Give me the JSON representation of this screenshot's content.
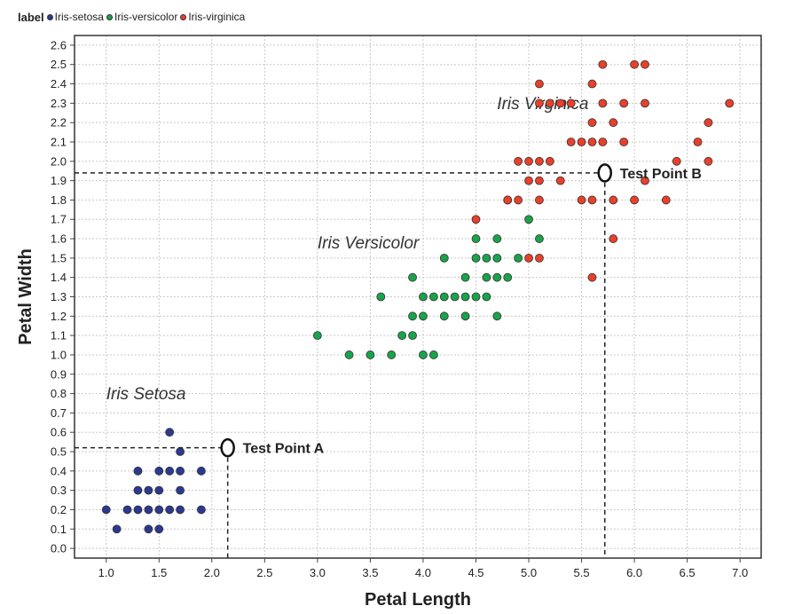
{
  "legend": {
    "title": "label",
    "items": [
      {
        "label": "Iris-setosa",
        "color": "#2b3990"
      },
      {
        "label": "Iris-versicolor",
        "color": "#1aa34a"
      },
      {
        "label": "Iris-virginica",
        "color": "#e8402a"
      }
    ]
  },
  "chart_data": {
    "type": "scatter",
    "title": "",
    "xlabel": "Petal Length",
    "ylabel": "Petal Width",
    "xlim": [
      0.7,
      7.2
    ],
    "ylim": [
      -0.05,
      2.65
    ],
    "xticks": [
      1.0,
      1.5,
      2.0,
      2.5,
      3.0,
      3.5,
      4.0,
      4.5,
      5.0,
      5.5,
      6.0,
      6.5,
      7.0
    ],
    "yticks": [
      0.0,
      0.1,
      0.2,
      0.3,
      0.4,
      0.5,
      0.6,
      0.7,
      0.8,
      0.9,
      1.0,
      1.1,
      1.2,
      1.3,
      1.4,
      1.5,
      1.6,
      1.7,
      1.8,
      1.9,
      2.0,
      2.1,
      2.2,
      2.3,
      2.4,
      2.5,
      2.6
    ],
    "grid": true,
    "series": [
      {
        "name": "Iris-setosa",
        "color": "#2b3990",
        "points": [
          [
            1.0,
            0.2
          ],
          [
            1.1,
            0.1
          ],
          [
            1.2,
            0.2
          ],
          [
            1.3,
            0.2
          ],
          [
            1.3,
            0.3
          ],
          [
            1.3,
            0.4
          ],
          [
            1.4,
            0.1
          ],
          [
            1.4,
            0.2
          ],
          [
            1.4,
            0.3
          ],
          [
            1.5,
            0.1
          ],
          [
            1.5,
            0.2
          ],
          [
            1.5,
            0.3
          ],
          [
            1.5,
            0.4
          ],
          [
            1.6,
            0.2
          ],
          [
            1.6,
            0.4
          ],
          [
            1.6,
            0.6
          ],
          [
            1.7,
            0.2
          ],
          [
            1.7,
            0.3
          ],
          [
            1.7,
            0.4
          ],
          [
            1.7,
            0.5
          ],
          [
            1.9,
            0.2
          ],
          [
            1.9,
            0.4
          ]
        ]
      },
      {
        "name": "Iris-versicolor",
        "color": "#1aa34a",
        "points": [
          [
            3.0,
            1.1
          ],
          [
            3.3,
            1.0
          ],
          [
            3.5,
            1.0
          ],
          [
            3.6,
            1.3
          ],
          [
            3.7,
            1.0
          ],
          [
            3.8,
            1.1
          ],
          [
            3.9,
            1.1
          ],
          [
            3.9,
            1.2
          ],
          [
            3.9,
            1.4
          ],
          [
            4.0,
            1.0
          ],
          [
            4.0,
            1.2
          ],
          [
            4.0,
            1.3
          ],
          [
            4.1,
            1.0
          ],
          [
            4.1,
            1.3
          ],
          [
            4.2,
            1.2
          ],
          [
            4.2,
            1.3
          ],
          [
            4.2,
            1.5
          ],
          [
            4.3,
            1.3
          ],
          [
            4.4,
            1.2
          ],
          [
            4.4,
            1.3
          ],
          [
            4.4,
            1.4
          ],
          [
            4.5,
            1.3
          ],
          [
            4.5,
            1.5
          ],
          [
            4.5,
            1.6
          ],
          [
            4.6,
            1.3
          ],
          [
            4.6,
            1.4
          ],
          [
            4.6,
            1.5
          ],
          [
            4.7,
            1.2
          ],
          [
            4.7,
            1.4
          ],
          [
            4.7,
            1.5
          ],
          [
            4.7,
            1.6
          ],
          [
            4.8,
            1.4
          ],
          [
            4.8,
            1.8
          ],
          [
            4.9,
            1.5
          ],
          [
            5.0,
            1.7
          ],
          [
            5.1,
            1.6
          ]
        ]
      },
      {
        "name": "Iris-virginica",
        "color": "#e8402a",
        "points": [
          [
            4.5,
            1.7
          ],
          [
            4.8,
            1.8
          ],
          [
            4.9,
            1.8
          ],
          [
            4.9,
            2.0
          ],
          [
            5.0,
            1.5
          ],
          [
            5.0,
            1.9
          ],
          [
            5.0,
            2.0
          ],
          [
            5.1,
            1.5
          ],
          [
            5.1,
            1.8
          ],
          [
            5.1,
            1.9
          ],
          [
            5.1,
            2.0
          ],
          [
            5.1,
            2.3
          ],
          [
            5.1,
            2.4
          ],
          [
            5.2,
            2.0
          ],
          [
            5.2,
            2.3
          ],
          [
            5.3,
            1.9
          ],
          [
            5.3,
            2.3
          ],
          [
            5.4,
            2.1
          ],
          [
            5.4,
            2.3
          ],
          [
            5.5,
            1.8
          ],
          [
            5.5,
            2.1
          ],
          [
            5.6,
            1.4
          ],
          [
            5.6,
            1.8
          ],
          [
            5.6,
            2.1
          ],
          [
            5.6,
            2.2
          ],
          [
            5.6,
            2.4
          ],
          [
            5.7,
            2.1
          ],
          [
            5.7,
            2.3
          ],
          [
            5.7,
            2.5
          ],
          [
            5.8,
            1.6
          ],
          [
            5.8,
            1.8
          ],
          [
            5.8,
            2.2
          ],
          [
            5.9,
            2.1
          ],
          [
            5.9,
            2.3
          ],
          [
            6.0,
            1.8
          ],
          [
            6.0,
            2.5
          ],
          [
            6.1,
            1.9
          ],
          [
            6.1,
            2.3
          ],
          [
            6.1,
            2.5
          ],
          [
            6.3,
            1.8
          ],
          [
            6.4,
            2.0
          ],
          [
            6.6,
            2.1
          ],
          [
            6.7,
            2.0
          ],
          [
            6.7,
            2.2
          ],
          [
            6.9,
            2.3
          ]
        ]
      }
    ],
    "annotations": [
      {
        "text": "Iris Setosa",
        "x": 1.0,
        "y": 0.77
      },
      {
        "text": "Iris Versicolor",
        "x": 3.0,
        "y": 1.55
      },
      {
        "text": "Iris Virginica",
        "x": 4.7,
        "y": 2.27
      }
    ],
    "test_points": [
      {
        "label": "Test Point A",
        "x": 2.15,
        "y": 0.52
      },
      {
        "label": "Test Point B",
        "x": 5.72,
        "y": 1.94
      }
    ]
  }
}
